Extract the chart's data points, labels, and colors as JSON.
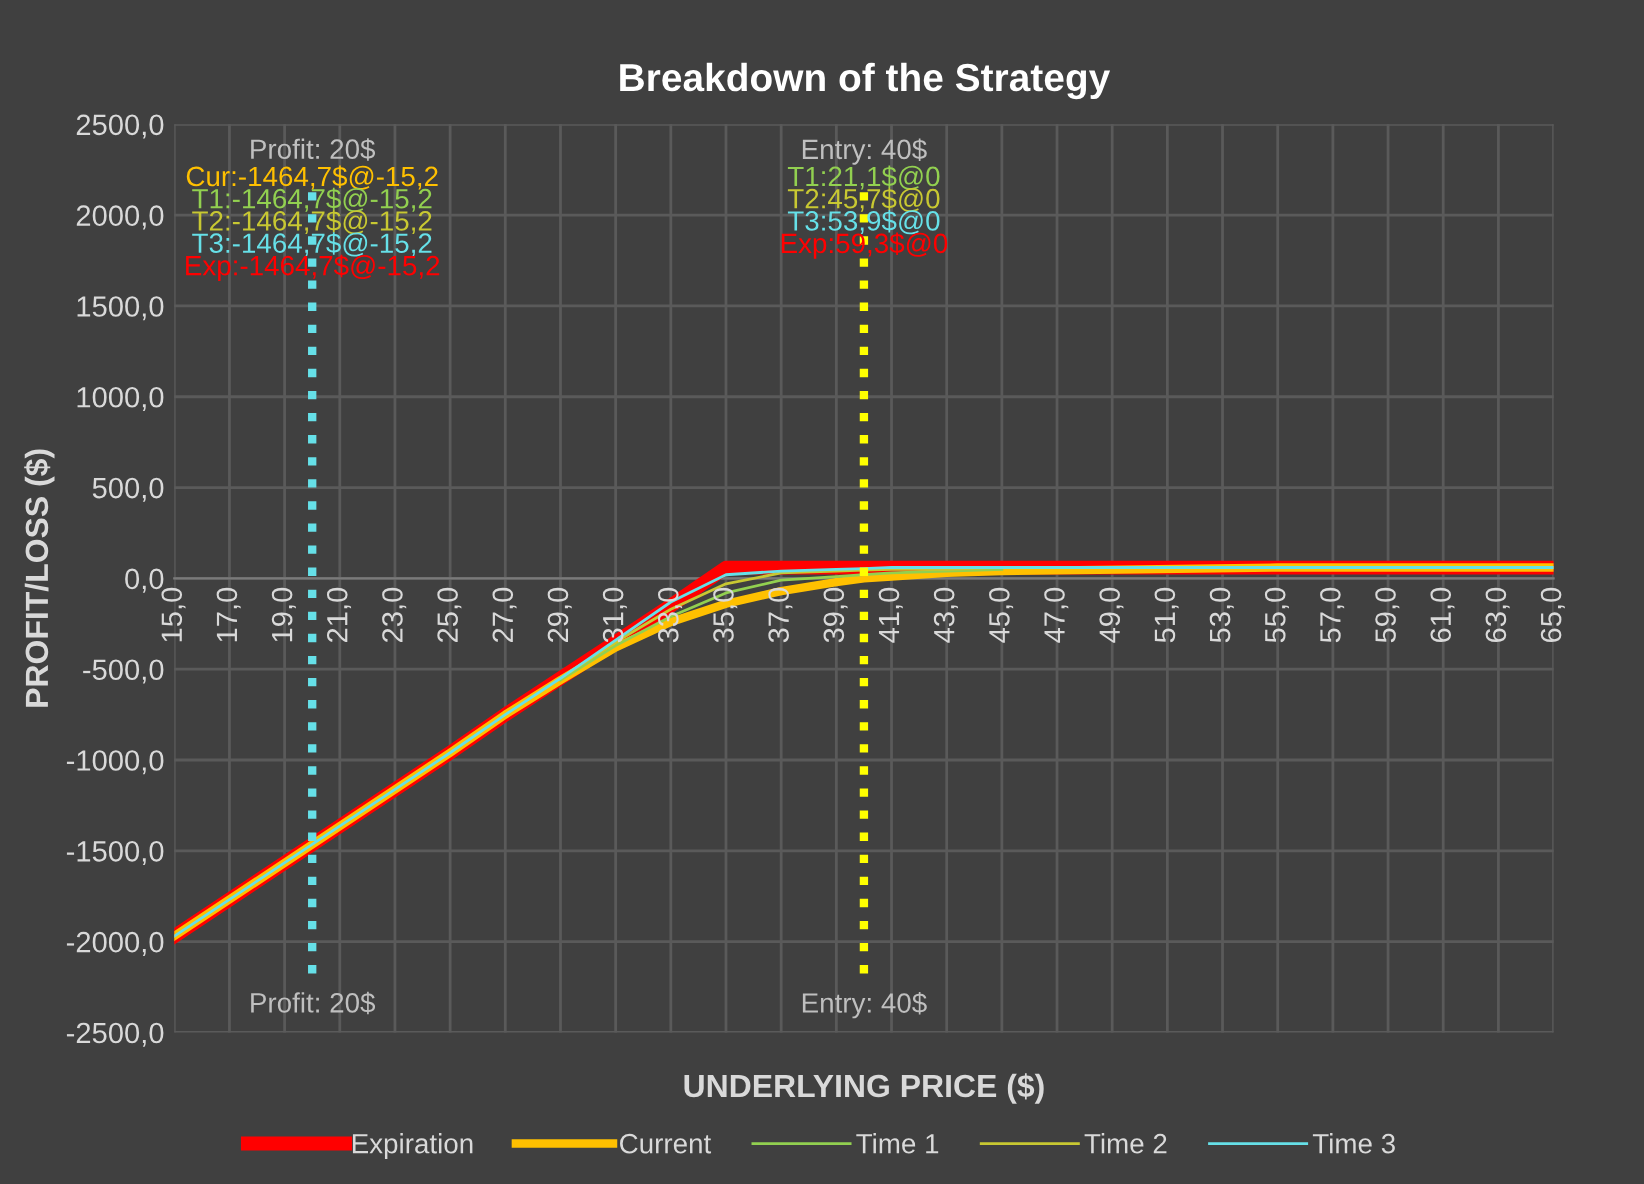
{
  "chart_data": {
    "type": "line",
    "title": "Breakdown of the Strategy",
    "xlabel": "UNDERLYING PRICE ($)",
    "ylabel": "PROFIT/LOSS ($)",
    "x": [
      15,
      20,
      25,
      27,
      29,
      31,
      33,
      35,
      37,
      39,
      40,
      41,
      43,
      45,
      50,
      55,
      60,
      65
    ],
    "series": [
      {
        "name": "Expiration",
        "color": "#ff0000",
        "values": [
          -1970,
          -1464.7,
          -960,
          -750,
          -550,
          -350,
          -150,
          59.3,
          59.3,
          59.3,
          59.3,
          59.3,
          59.3,
          59.3,
          59.3,
          59.3,
          59.3,
          59.3
        ]
      },
      {
        "name": "Current",
        "color": "#ffc000",
        "values": [
          -1970,
          -1464.7,
          -960,
          -750,
          -560,
          -380,
          -240,
          -140,
          -70,
          -20,
          0,
          10,
          30,
          40,
          50,
          60,
          60,
          60
        ]
      },
      {
        "name": "Time 1",
        "color": "#92d050",
        "values": [
          null,
          null,
          null,
          null,
          -560,
          -370,
          -210,
          -80,
          -10,
          10,
          21.1,
          30,
          40,
          50,
          null,
          null,
          null,
          null
        ]
      },
      {
        "name": "Time 2",
        "color": "#c8c832",
        "values": [
          null,
          null,
          null,
          null,
          -550,
          -350,
          -170,
          -30,
          30,
          40,
          45.7,
          50,
          50,
          60,
          60,
          null,
          null,
          null
        ]
      },
      {
        "name": "Time 3",
        "color": "#66e0e8",
        "values": [
          -1970,
          -1464.7,
          -960,
          -750,
          -550,
          -340,
          -130,
          20,
          40,
          50,
          53.9,
          60,
          60,
          60,
          60,
          60,
          60,
          60
        ]
      }
    ],
    "xlim": [
      15,
      65
    ],
    "xticks": [
      {
        "value": 15,
        "label": "15,0"
      },
      {
        "value": 17,
        "label": "17,0"
      },
      {
        "value": 19,
        "label": "19,0"
      },
      {
        "value": 21,
        "label": "21,0"
      },
      {
        "value": 23,
        "label": "23,0"
      },
      {
        "value": 25,
        "label": "25,0"
      },
      {
        "value": 27,
        "label": "27,0"
      },
      {
        "value": 29,
        "label": "29,0"
      },
      {
        "value": 31,
        "label": "31,0"
      },
      {
        "value": 33,
        "label": "33,0"
      },
      {
        "value": 35,
        "label": "35,0"
      },
      {
        "value": 37,
        "label": "37,0"
      },
      {
        "value": 39,
        "label": "39,0"
      },
      {
        "value": 41,
        "label": "41,0"
      },
      {
        "value": 43,
        "label": "43,0"
      },
      {
        "value": 45,
        "label": "45,0"
      },
      {
        "value": 47,
        "label": "47,0"
      },
      {
        "value": 49,
        "label": "49,0"
      },
      {
        "value": 51,
        "label": "51,0"
      },
      {
        "value": 53,
        "label": "53,0"
      },
      {
        "value": 55,
        "label": "55,0"
      },
      {
        "value": 57,
        "label": "57,0"
      },
      {
        "value": 59,
        "label": "59,0"
      },
      {
        "value": 61,
        "label": "61,0"
      },
      {
        "value": 63,
        "label": "63,0"
      },
      {
        "value": 65,
        "label": "65,0"
      }
    ],
    "ylim": [
      -2500,
      2500
    ],
    "yticks": [
      {
        "value": -2500,
        "label": "-2500,0"
      },
      {
        "value": -2000,
        "label": "-2000,0"
      },
      {
        "value": -1500,
        "label": "-1500,0"
      },
      {
        "value": -1000,
        "label": "-1000,0"
      },
      {
        "value": -500,
        "label": "-500,0"
      },
      {
        "value": 0,
        "label": "0,0"
      },
      {
        "value": 500,
        "label": "500,0"
      },
      {
        "value": 1000,
        "label": "1000,0"
      },
      {
        "value": 1500,
        "label": "1500,0"
      },
      {
        "value": 2000,
        "label": "2000,0"
      },
      {
        "value": 2500,
        "label": "2500,0"
      }
    ],
    "ref_lines": [
      {
        "axis": "x",
        "value": 20,
        "label": "Profit: 20$",
        "color": "#66e0e8",
        "line_style": "dotted"
      },
      {
        "axis": "x",
        "value": 40,
        "label": "Entry: 40$",
        "color": "#ffff00",
        "line_style": "dotted"
      }
    ],
    "annotations": [
      "Cur:-1464,7$@-15,2",
      "T1:-1464,7$@-15,2",
      "T2:-1464,7$@-15,2",
      "T3:-1464,7$@-15,2",
      "Exp:-1464,7$@-15,2",
      "T1:21,1$@0",
      "T2:45,7$@0",
      "T3:53,9$@0",
      "Exp:59,3$@0"
    ],
    "grid": true,
    "legend": "bottom",
    "marker": "none",
    "line_style": "solid"
  }
}
